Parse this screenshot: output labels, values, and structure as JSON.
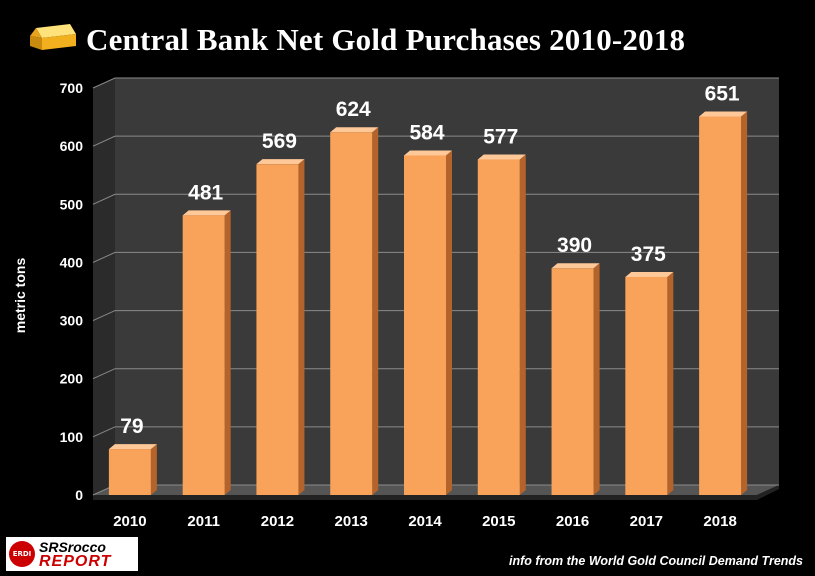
{
  "title": "Central Bank Net Gold Purchases 2010-2018",
  "source_note": "info from the World Gold Council Demand Trends",
  "logo": {
    "badge": "ERDI",
    "line1": "SRSrocco",
    "line2": "REPORT"
  },
  "colors": {
    "background": "#000000",
    "plot_wall": "#3a3a3a",
    "bar_front": "#f9a25a",
    "bar_side": "#b4642a",
    "bar_top": "#ffc898",
    "text": "#ffffff"
  },
  "chart_data": {
    "type": "bar",
    "title": "Central Bank Net Gold Purchases 2010-2018",
    "categories": [
      "2010",
      "2011",
      "2012",
      "2013",
      "2014",
      "2015",
      "2016",
      "2017",
      "2018"
    ],
    "values": [
      79,
      481,
      569,
      624,
      584,
      577,
      390,
      375,
      651
    ],
    "data_labels": [
      "79",
      "481",
      "569",
      "624",
      "584",
      "577",
      "390",
      "375",
      "651"
    ],
    "xlabel": "",
    "ylabel": "metric tons",
    "ylim": [
      0,
      700
    ],
    "yticks": [
      0,
      100,
      200,
      300,
      400,
      500,
      600,
      700
    ],
    "grid": true,
    "legend": "none"
  }
}
